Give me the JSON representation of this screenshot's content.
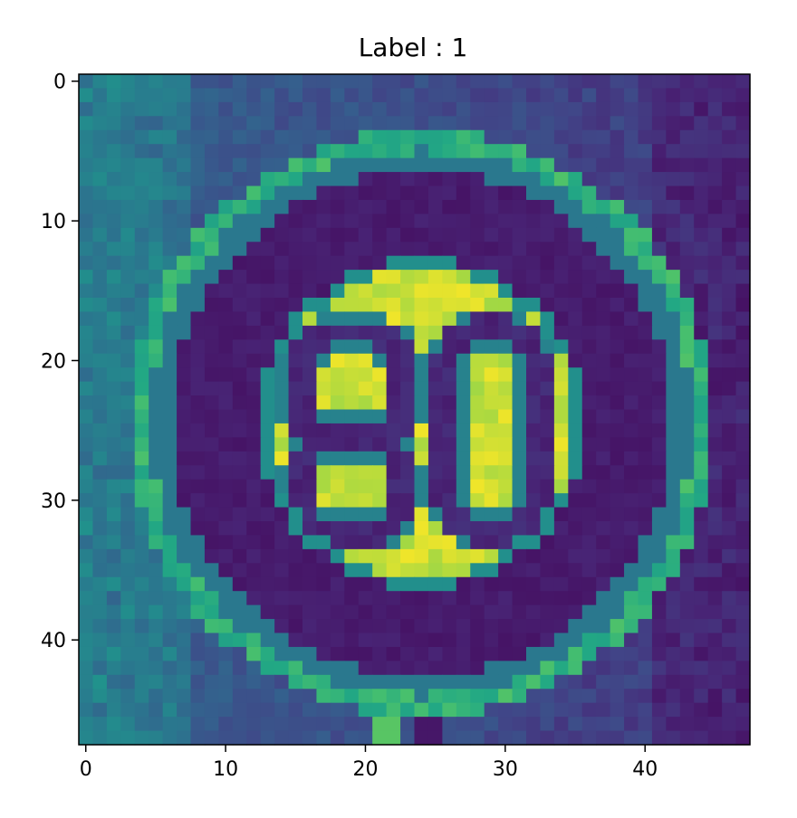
{
  "title": "Label : 1",
  "image": {
    "colormap": "viridis",
    "grid_size": [
      48,
      48
    ],
    "subject": "speed-limit-sign",
    "sign_text": "80"
  },
  "axes": {
    "x_ticks": [
      "0",
      "10",
      "20",
      "30",
      "40"
    ],
    "y_ticks": [
      "0",
      "10",
      "20",
      "30",
      "40"
    ],
    "x_tick_values": [
      0,
      10,
      20,
      30,
      40
    ],
    "y_tick_values": [
      0,
      10,
      20,
      30,
      40
    ],
    "xlim": [
      -0.5,
      47.5
    ],
    "ylim": [
      47.5,
      -0.5
    ]
  },
  "colors": {
    "viridis_low": "#440154",
    "viridis_mid": "#21918c",
    "viridis_high": "#fde725"
  }
}
